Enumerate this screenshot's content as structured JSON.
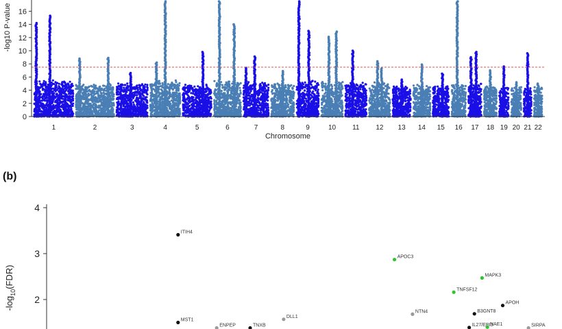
{
  "figure": {
    "panel_b_label": "(b)"
  },
  "chart_data": [
    {
      "type": "scatter",
      "subtype": "manhattan",
      "ylabel": "-log10 P-value",
      "xlabel": "Chromosome",
      "ylim": [
        0,
        17.5
      ],
      "yticks": [
        0,
        2,
        4,
        6,
        8,
        10,
        12,
        14,
        16
      ],
      "threshold": 7.3,
      "colors": {
        "odd": "#1a0fe6",
        "even": "#4a7fb5",
        "threshold": "#e05050"
      },
      "chromosomes": [
        {
          "label": "1",
          "background_max": 5.6,
          "peaks": [
            {
              "offset": 0.05,
              "value": 14.2
            },
            {
              "offset": 0.4,
              "value": 15.3
            }
          ]
        },
        {
          "label": "2",
          "background_max": 5.0,
          "peaks": [
            {
              "offset": 0.1,
              "value": 8.8
            },
            {
              "offset": 0.85,
              "value": 8.9
            }
          ]
        },
        {
          "label": "3",
          "background_max": 5.2,
          "peaks": [
            {
              "offset": 0.45,
              "value": 6.6
            }
          ]
        },
        {
          "label": "4",
          "background_max": 5.5,
          "peaks": [
            {
              "offset": 0.5,
              "value": 17.5
            },
            {
              "offset": 0.2,
              "value": 8.2
            }
          ]
        },
        {
          "label": "5",
          "background_max": 5.0,
          "peaks": [
            {
              "offset": 0.7,
              "value": 9.8
            }
          ]
        },
        {
          "label": "6",
          "background_max": 5.6,
          "peaks": [
            {
              "offset": 0.2,
              "value": 17.5
            },
            {
              "offset": 0.75,
              "value": 14.0
            }
          ]
        },
        {
          "label": "7",
          "background_max": 5.4,
          "peaks": [
            {
              "offset": 0.45,
              "value": 9.1
            },
            {
              "offset": 0.1,
              "value": 7.4
            }
          ]
        },
        {
          "label": "8",
          "background_max": 5.2,
          "peaks": [
            {
              "offset": 0.5,
              "value": 6.9
            }
          ]
        },
        {
          "label": "9",
          "background_max": 5.6,
          "peaks": [
            {
              "offset": 0.1,
              "value": 17.5
            },
            {
              "offset": 0.55,
              "value": 13.0
            }
          ]
        },
        {
          "label": "10",
          "background_max": 5.4,
          "peaks": [
            {
              "offset": 0.35,
              "value": 12.1
            },
            {
              "offset": 0.7,
              "value": 12.9
            }
          ]
        },
        {
          "label": "11",
          "background_max": 5.3,
          "peaks": [
            {
              "offset": 0.35,
              "value": 10.0
            }
          ]
        },
        {
          "label": "12",
          "background_max": 5.3,
          "peaks": [
            {
              "offset": 0.4,
              "value": 8.4
            },
            {
              "offset": 0.6,
              "value": 7.3
            }
          ]
        },
        {
          "label": "13",
          "background_max": 4.8,
          "peaks": [
            {
              "offset": 0.5,
              "value": 5.6
            }
          ]
        },
        {
          "label": "14",
          "background_max": 4.9,
          "peaks": [
            {
              "offset": 0.5,
              "value": 7.9
            }
          ]
        },
        {
          "label": "15",
          "background_max": 4.8,
          "peaks": [
            {
              "offset": 0.6,
              "value": 6.5
            }
          ]
        },
        {
          "label": "16",
          "background_max": 5.2,
          "peaks": [
            {
              "offset": 0.4,
              "value": 17.5
            }
          ]
        },
        {
          "label": "17",
          "background_max": 5.0,
          "peaks": [
            {
              "offset": 0.2,
              "value": 9.0
            },
            {
              "offset": 0.6,
              "value": 9.8
            }
          ]
        },
        {
          "label": "18",
          "background_max": 4.8,
          "peaks": [
            {
              "offset": 0.5,
              "value": 7.0
            }
          ]
        },
        {
          "label": "19",
          "background_max": 4.6,
          "peaks": [
            {
              "offset": 0.5,
              "value": 7.6
            }
          ]
        },
        {
          "label": "20",
          "background_max": 4.6,
          "peaks": [
            {
              "offset": 0.5,
              "value": 5.2
            }
          ]
        },
        {
          "label": "21",
          "background_max": 4.5,
          "peaks": [
            {
              "offset": 0.5,
              "value": 9.6
            }
          ]
        },
        {
          "label": "22",
          "background_max": 4.6,
          "peaks": [
            {
              "offset": 0.5,
              "value": 5.0
            }
          ]
        }
      ]
    },
    {
      "type": "scatter",
      "ylabel_main": "-log",
      "ylabel_sub": "10",
      "ylabel_tail": "(FDR)",
      "yticks": [
        2,
        3,
        4
      ],
      "ylim": [
        1.35,
        4.2
      ],
      "points": [
        {
          "label": "ITIH4",
          "x": 0.255,
          "y": 3.41,
          "color": "#111111"
        },
        {
          "label": "MST1",
          "x": 0.255,
          "y": 1.5,
          "color": "#111111"
        },
        {
          "label": "ENPEP",
          "x": 0.33,
          "y": 1.38,
          "color": "#9a9a9a"
        },
        {
          "label": "TNXB",
          "x": 0.395,
          "y": 1.38,
          "color": "#111111"
        },
        {
          "label": "DLL1",
          "x": 0.46,
          "y": 1.57,
          "color": "#9a9a9a"
        },
        {
          "label": "APOC3",
          "x": 0.675,
          "y": 2.87,
          "color": "#2ec42e"
        },
        {
          "label": "MAPK3",
          "x": 0.845,
          "y": 2.47,
          "color": "#2ec42e"
        },
        {
          "label": "TNFSF12",
          "x": 0.79,
          "y": 2.16,
          "color": "#2ec42e"
        },
        {
          "label": "APOH",
          "x": 0.885,
          "y": 1.87,
          "color": "#111111"
        },
        {
          "label": "B3GNT8",
          "x": 0.83,
          "y": 1.69,
          "color": "#111111"
        },
        {
          "label": "NTN4",
          "x": 0.71,
          "y": 1.68,
          "color": "#9a9a9a"
        },
        {
          "label": "IL27/EBI3",
          "x": 0.82,
          "y": 1.39,
          "color": "#111111"
        },
        {
          "label": "NAE1",
          "x": 0.855,
          "y": 1.4,
          "color": "#2ec42e"
        },
        {
          "label": "SIRPA",
          "x": 0.935,
          "y": 1.38,
          "color": "#9a9a9a"
        }
      ]
    }
  ]
}
